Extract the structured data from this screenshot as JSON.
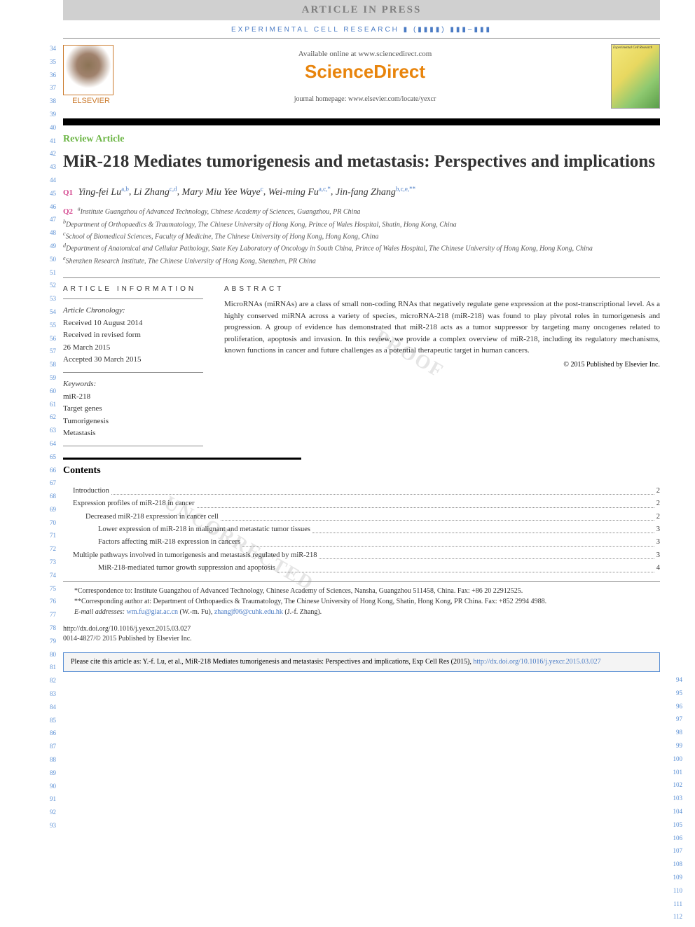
{
  "header": {
    "article_in_press": "ARTICLE IN PRESS",
    "journal_ref": "EXPERIMENTAL CELL RESEARCH ▮ (▮▮▮▮) ▮▮▮–▮▮▮",
    "available": "Available online at www.sciencedirect.com",
    "sciencedirect": "ScienceDirect",
    "homepage": "journal homepage: www.elsevier.com/locate/yexcr",
    "elsevier": "ELSEVIER",
    "cover_title": "Experimental Cell Research"
  },
  "article_type": "Review Article",
  "title": "MiR-218 Mediates tumorigenesis and metastasis: Perspectives and implications",
  "q_labels": {
    "q1": "Q1",
    "q2": "Q2"
  },
  "authors": [
    {
      "name": "Ying-fei Lu",
      "aff": "a,b"
    },
    {
      "name": "Li Zhang",
      "aff": "c,d"
    },
    {
      "name": "Mary Miu Yee Waye",
      "aff": "c"
    },
    {
      "name": "Wei-ming Fu",
      "aff": "a,c,*"
    },
    {
      "name": "Jin-fang Zhang",
      "aff": "b,c,e,**"
    }
  ],
  "affiliations": [
    {
      "key": "a",
      "text": "Institute Guangzhou of Advanced Technology, Chinese Academy of Sciences, Guangzhou, PR China"
    },
    {
      "key": "b",
      "text": "Department of Orthopaedics & Traumatology, The Chinese University of Hong Kong, Prince of Wales Hospital, Shatin, Hong Kong, China"
    },
    {
      "key": "c",
      "text": "School of Biomedical Sciences, Faculty of Medicine, The Chinese University of Hong Kong, Hong Kong, China"
    },
    {
      "key": "d",
      "text": "Department of Anatomical and Cellular Pathology, State Key Laboratory of Oncology in South China, Prince of Wales Hospital, The Chinese University of Hong Kong, Hong Kong, China"
    },
    {
      "key": "e",
      "text": "Shenzhen Research Institute, The Chinese University of Hong Kong, Shenzhen, PR China"
    }
  ],
  "info": {
    "heading_left": "ARTICLE INFORMATION",
    "heading_right": "ABSTRACT",
    "chronology_label": "Article Chronology:",
    "chronology": [
      "Received 10 August 2014",
      "Received in revised form",
      "26 March 2015",
      "Accepted 30 March 2015"
    ],
    "keywords_label": "Keywords:",
    "keywords": [
      "miR-218",
      "Target genes",
      "Tumorigenesis",
      "Metastasis"
    ]
  },
  "abstract": "MicroRNAs (miRNAs) are a class of small non-coding RNAs that negatively regulate gene expression at the post-transcriptional level. As a highly conserved miRNA across a variety of species, microRNA-218 (miR-218) was found to play pivotal roles in tumorigenesis and progression. A group of evidence has demonstrated that miR-218 acts as a tumor suppressor by targeting many oncogenes related to proliferation, apoptosis and invasion. In this review, we provide a complex overview of miR-218, including its regulatory mechanisms, known functions in cancer and future challenges as a potential therapeutic target in human cancers.",
  "copyright": "© 2015 Published by Elsevier Inc.",
  "contents_heading": "Contents",
  "toc": [
    {
      "title": "Introduction",
      "page": "2",
      "indent": 0
    },
    {
      "title": "Expression profiles of miR-218 in cancer",
      "page": "2",
      "indent": 0
    },
    {
      "title": "Decreased miR-218 expression in cancer cell",
      "page": "2",
      "indent": 1
    },
    {
      "title": "Lower expression of miR-218 in malignant and metastatic tumor tissues",
      "page": "3",
      "indent": 2
    },
    {
      "title": "Factors affecting miR-218 expression in cancers",
      "page": "3",
      "indent": 2
    },
    {
      "title": "Multiple pathways involved in tumorigenesis and metastasis regulated by miR-218",
      "page": "3",
      "indent": 0
    },
    {
      "title": "MiR-218-mediated tumor growth suppression and apoptosis",
      "page": "4",
      "indent": 2
    }
  ],
  "footnotes": {
    "corr1": "*Correspondence to: Institute Guangzhou of Advanced Technology, Chinese Academy of Sciences, Nansha, Guangzhou 511458, China. Fax: +86 20 22912525.",
    "corr2": "**Corresponding author at: Department of Orthopaedics & Traumatology, The Chinese University of Hong Kong, Shatin, Hong Kong, PR China. Fax: +852 2994 4988.",
    "email_label": "E-mail addresses:",
    "email1": "wm.fu@giat.ac.cn",
    "email1_name": "(W.-m. Fu),",
    "email2": "zhangjf06@cuhk.edu.hk",
    "email2_name": "(J.-f. Zhang)."
  },
  "doi": {
    "url": "http://dx.doi.org/10.1016/j.yexcr.2015.03.027",
    "issn": "0014-4827/© 2015 Published by Elsevier Inc."
  },
  "cite_box": {
    "text": "Please cite this article as: Y.-f. Lu, et al., MiR-218 Mediates tumorigenesis and metastasis: Perspectives and implications, Exp Cell Res (2015), ",
    "link": "http://dx.doi.org/10.1016/j.yexcr.2015.03.027"
  },
  "line_numbers": {
    "left_start": 34,
    "left_end": 93,
    "right_start": 94,
    "right_end": 112
  },
  "watermarks": [
    "UNCORRECTED PROOF"
  ],
  "colors": {
    "link": "#4a7bc4",
    "green": "#6bb544",
    "orange": "#e8840c",
    "magenta": "#d4478f",
    "line_num": "#5a8fd4"
  }
}
